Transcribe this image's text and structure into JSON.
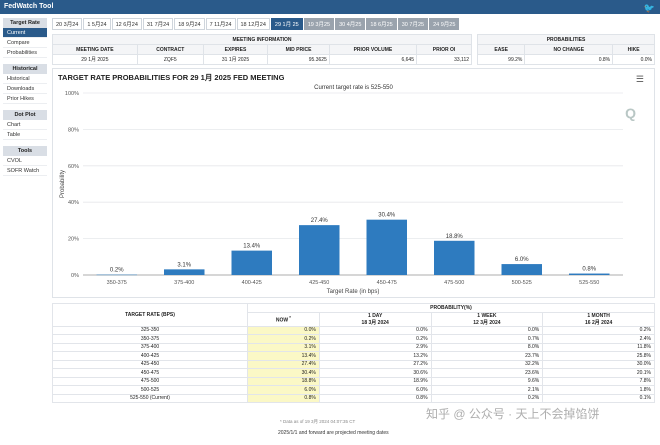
{
  "app_title": "FedWatch Tool",
  "nav": {
    "groups": [
      {
        "title": "Target Rate",
        "items": [
          "Current",
          "Compare",
          "Probabilities"
        ]
      },
      {
        "title": "Historical",
        "items": [
          "Historical",
          "Downloads",
          "Prior Hikes"
        ]
      },
      {
        "title": "Dot Plot",
        "items": [
          "Chart",
          "Table"
        ]
      },
      {
        "title": "Tools",
        "items": [
          "CVOL",
          "SOFR Watch"
        ]
      }
    ]
  },
  "tabs": [
    "20 3月24",
    "1 5月24",
    "12 6月24",
    "31 7月24",
    "18 9月24",
    "7 11月24",
    "18 12月24",
    "29 1月 25",
    "19 3月25",
    "30 4月25",
    "18 6月25",
    "30 7月25",
    "24 9月25"
  ],
  "meeting_info": {
    "header": "MEETING INFORMATION",
    "columns": [
      "MEETING DATE",
      "CONTRACT",
      "EXPIRES",
      "MID PRICE",
      "PRIOR VOLUME",
      "PRIOR OI"
    ],
    "values": [
      "29 1月 2025",
      "ZQF5",
      "31 1月 2025",
      "95.3625",
      "6,645",
      "33,112"
    ]
  },
  "probabilities": {
    "header": "PROBABILITIES",
    "columns": [
      "EASE",
      "NO CHANGE",
      "HIKE"
    ],
    "values": [
      "99.2%",
      "0.8%",
      "0.0%"
    ]
  },
  "chart_title": "TARGET RATE PROBABILITIES FOR 29 1月 2025 FED MEETING",
  "chart_subtitle": "Current target rate is 525-550",
  "chart_logo": "Q",
  "chart_data": {
    "type": "bar",
    "categories": [
      "350-375",
      "375-400",
      "400-425",
      "425-450",
      "450-475",
      "475-500",
      "500-525",
      "525-550"
    ],
    "values": [
      0.2,
      3.1,
      13.4,
      27.4,
      30.4,
      18.8,
      6.0,
      0.8
    ],
    "value_labels": [
      "0.2%",
      "3.1%",
      "13.4%",
      "27.4%",
      "30.4%",
      "18.8%",
      "6.0%",
      "0.8%"
    ],
    "xlabel": "Target Rate (in bps)",
    "ylabel": "Probability",
    "ylim": [
      0,
      100
    ],
    "yticks": [
      "0%",
      "20%",
      "40%",
      "60%",
      "80%",
      "100%"
    ],
    "bar_color": "#2e7bbf",
    "grid": true
  },
  "bottom_table": {
    "col_target": "TARGET RATE (BPS)",
    "col_prob": "PROBABILITY(%)",
    "sub_headers": [
      {
        "l1": "NOW",
        "l2": ""
      },
      {
        "l1": "1 DAY",
        "l2": "18 3月 2024"
      },
      {
        "l1": "1 WEEK",
        "l2": "12 3月 2024"
      },
      {
        "l1": "1 MONTH",
        "l2": "16 2月 2024"
      }
    ],
    "rows": [
      [
        "325-350",
        "0.0%",
        "0.0%",
        "0.0%",
        "0.2%"
      ],
      [
        "350-375",
        "0.2%",
        "0.2%",
        "0.7%",
        "2.4%"
      ],
      [
        "375-400",
        "3.1%",
        "2.9%",
        "8.0%",
        "11.8%"
      ],
      [
        "400-425",
        "13.4%",
        "13.2%",
        "23.7%",
        "25.8%"
      ],
      [
        "425-450",
        "27.4%",
        "27.2%",
        "32.2%",
        "30.0%"
      ],
      [
        "450-475",
        "30.4%",
        "30.6%",
        "23.6%",
        "20.1%"
      ],
      [
        "475-500",
        "18.8%",
        "18.9%",
        "9.6%",
        "7.8%"
      ],
      [
        "500-525",
        "6.0%",
        "6.0%",
        "2.1%",
        "1.8%"
      ],
      [
        "525-550 (Current)",
        "0.8%",
        "0.8%",
        "0.2%",
        "0.1%"
      ]
    ]
  },
  "footnote": "* Data as of 19 3月 2024 04:07:35 CT",
  "footnote2": "2025/1/1 and forward are projected meeting dates",
  "watermark": "知乎 @ 公众号 · 天上不会掉馅饼"
}
